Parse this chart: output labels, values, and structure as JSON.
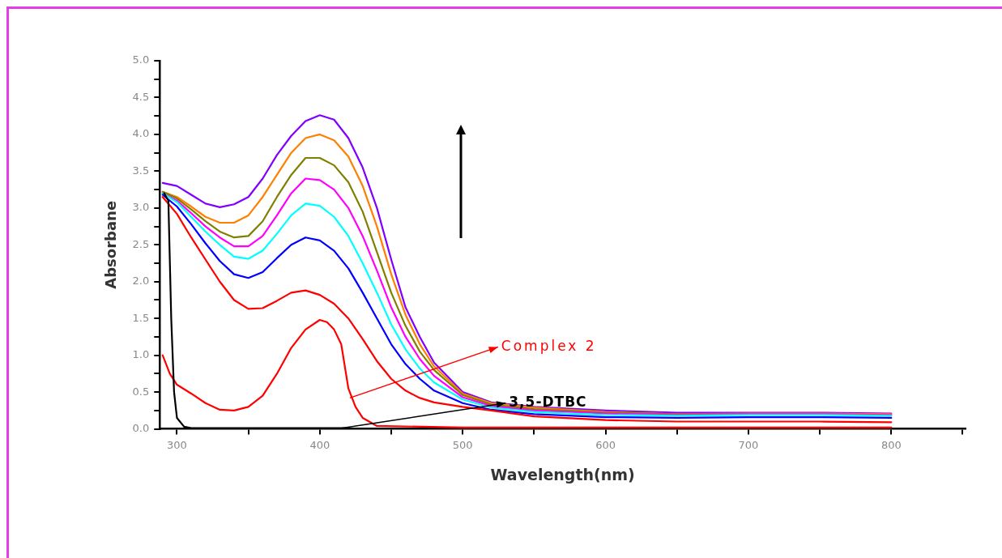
{
  "chart_data": {
    "type": "line",
    "xlabel": "Wavelength(nm)",
    "ylabel": "Absorbane",
    "xlim": [
      288,
      852
    ],
    "ylim": [
      0,
      5
    ],
    "xticks": [
      300,
      {
        "value": 350,
        "label": null
      },
      400,
      {
        "value": 450,
        "label": null
      },
      500,
      {
        "value": 550,
        "label": null
      },
      600,
      {
        "value": 650,
        "label": null
      },
      700,
      {
        "value": 750,
        "label": null
      },
      800,
      {
        "value": 850,
        "label": null
      }
    ],
    "yticks": [
      {
        "value": 0,
        "label": "0.0"
      },
      {
        "value": 0.25,
        "label": null
      },
      {
        "value": 0.5,
        "label": "0.5"
      },
      {
        "value": 0.75,
        "label": null
      },
      {
        "value": 1,
        "label": "1.0"
      },
      {
        "value": 1.25,
        "label": null
      },
      {
        "value": 1.5,
        "label": "1.5"
      },
      {
        "value": 1.75,
        "label": null
      },
      {
        "value": 2,
        "label": "2.0"
      },
      {
        "value": 2.25,
        "label": null
      },
      {
        "value": 2.5,
        "label": "2.5"
      },
      {
        "value": 2.75,
        "label": null
      },
      {
        "value": 3,
        "label": "3.0"
      },
      {
        "value": 3.25,
        "label": null
      },
      {
        "value": 3.5,
        "label": "3.5"
      },
      {
        "value": 3.75,
        "label": null
      },
      {
        "value": 4,
        "label": "4.0"
      },
      {
        "value": 4.25,
        "label": null
      },
      {
        "value": 4.5,
        "label": "4.5"
      },
      {
        "value": 4.75,
        "label": null
      },
      {
        "value": 5,
        "label": "5.0"
      }
    ],
    "grid": false,
    "legend": false,
    "line_style": "solid",
    "x": [
      290,
      300,
      310,
      320,
      330,
      340,
      350,
      360,
      370,
      380,
      390,
      400,
      410,
      420,
      430,
      440,
      450,
      460,
      470,
      480,
      500,
      520,
      550,
      600,
      650,
      700,
      750,
      800
    ],
    "series": [
      {
        "color": "#000000",
        "x": [
          291,
          294,
          296,
          298,
          300,
          305,
          310,
          420
        ],
        "values": [
          3.2,
          3.1,
          1.5,
          0.5,
          0.15,
          0.03,
          0.01,
          0.01
        ]
      },
      {
        "color": "#ff0000",
        "x": [
          290,
          295,
          300,
          310,
          320,
          330,
          340,
          350,
          360,
          370,
          380,
          390,
          400,
          405,
          410,
          415,
          420,
          425,
          430,
          440,
          500,
          600,
          700,
          800
        ],
        "values": [
          1.0,
          0.75,
          0.6,
          0.48,
          0.35,
          0.26,
          0.25,
          0.3,
          0.45,
          0.75,
          1.1,
          1.35,
          1.48,
          1.45,
          1.35,
          1.15,
          0.55,
          0.3,
          0.15,
          0.04,
          0.02,
          0.02,
          0.02,
          0.02
        ]
      },
      {
        "color": "#ff0000",
        "values": [
          3.15,
          2.92,
          2.6,
          2.3,
          2.0,
          1.75,
          1.63,
          1.64,
          1.74,
          1.85,
          1.88,
          1.82,
          1.7,
          1.5,
          1.22,
          0.92,
          0.68,
          0.52,
          0.42,
          0.36,
          0.3,
          0.25,
          0.17,
          0.12,
          0.1,
          0.1,
          0.1,
          0.09
        ]
      },
      {
        "color": "#0000ff",
        "values": [
          3.18,
          3.02,
          2.78,
          2.52,
          2.28,
          2.1,
          2.05,
          2.13,
          2.32,
          2.5,
          2.6,
          2.56,
          2.42,
          2.18,
          1.85,
          1.5,
          1.15,
          0.88,
          0.68,
          0.52,
          0.35,
          0.26,
          0.2,
          0.16,
          0.15,
          0.16,
          0.16,
          0.15
        ]
      },
      {
        "color": "#00ffff",
        "values": [
          3.2,
          3.08,
          2.88,
          2.68,
          2.5,
          2.34,
          2.31,
          2.42,
          2.65,
          2.9,
          3.06,
          3.03,
          2.88,
          2.62,
          2.25,
          1.85,
          1.42,
          1.08,
          0.82,
          0.63,
          0.4,
          0.29,
          0.23,
          0.19,
          0.18,
          0.19,
          0.19,
          0.18
        ]
      },
      {
        "color": "#ff00ff",
        "values": [
          3.2,
          3.1,
          2.93,
          2.75,
          2.6,
          2.48,
          2.48,
          2.62,
          2.9,
          3.2,
          3.4,
          3.38,
          3.25,
          3.0,
          2.62,
          2.15,
          1.65,
          1.25,
          0.95,
          0.72,
          0.43,
          0.31,
          0.25,
          0.21,
          0.19,
          0.2,
          0.2,
          0.19
        ]
      },
      {
        "color": "#808000",
        "values": [
          3.22,
          3.13,
          2.98,
          2.82,
          2.68,
          2.6,
          2.62,
          2.82,
          3.15,
          3.45,
          3.68,
          3.68,
          3.58,
          3.35,
          2.95,
          2.4,
          1.85,
          1.4,
          1.05,
          0.8,
          0.46,
          0.33,
          0.27,
          0.22,
          0.2,
          0.2,
          null,
          null
        ]
      },
      {
        "color": "#ff8000",
        "values": [
          3.22,
          3.15,
          3.02,
          2.88,
          2.8,
          2.8,
          2.9,
          3.15,
          3.45,
          3.75,
          3.95,
          4.0,
          3.92,
          3.7,
          3.3,
          2.75,
          2.1,
          1.55,
          1.15,
          0.85,
          0.48,
          0.35,
          0.29,
          0.23,
          0.2,
          0.21,
          0.21,
          0.2
        ]
      },
      {
        "color": "#8000ff",
        "values": [
          3.34,
          3.3,
          3.18,
          3.06,
          3.01,
          3.05,
          3.15,
          3.4,
          3.72,
          3.98,
          4.18,
          4.26,
          4.2,
          3.95,
          3.55,
          3.0,
          2.3,
          1.65,
          1.25,
          0.9,
          0.5,
          0.36,
          0.3,
          0.25,
          0.22,
          0.22,
          0.22,
          0.21
        ]
      }
    ],
    "annotations": [
      {
        "text": "Complex 2",
        "x": 421,
        "y": 0.42
      },
      {
        "text": "3,5-DTBC",
        "x": 415,
        "y": 0.01
      }
    ]
  }
}
